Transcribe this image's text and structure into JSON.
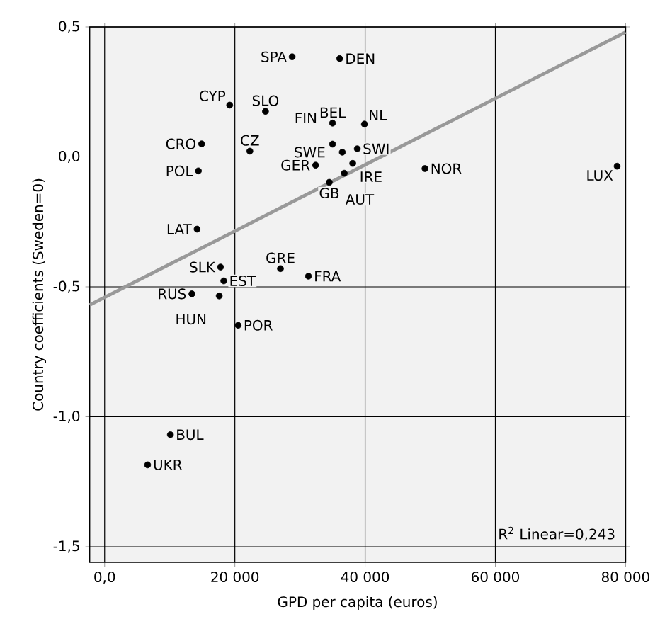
{
  "chart_data": {
    "type": "scatter",
    "xlabel": "GPD per capita (euros)",
    "ylabel": "Country coefficients (Sweden=0)",
    "xlim": [
      -2300,
      80000
    ],
    "ylim": [
      -1.56,
      0.5
    ],
    "xticks": [
      {
        "value": 0,
        "label": "0,0"
      },
      {
        "value": 20000,
        "label": "20 000"
      },
      {
        "value": 40000,
        "label": "40 000"
      },
      {
        "value": 60000,
        "label": "60 000"
      },
      {
        "value": 80000,
        "label": "80 000"
      }
    ],
    "yticks": [
      {
        "value": -1.5,
        "label": "-1,5"
      },
      {
        "value": -1.0,
        "label": "-1,0"
      },
      {
        "value": -0.5,
        "label": "-0,5"
      },
      {
        "value": 0,
        "label": "0,0"
      },
      {
        "value": 0.5,
        "label": "0,5"
      }
    ],
    "grid": true,
    "marker": "circle",
    "series": [
      {
        "color": "#000000",
        "x": [
          28800,
          36100,
          19200,
          24700,
          35000,
          39900,
          14900,
          35000,
          22300,
          36500,
          38800,
          32400,
          38100,
          14400,
          49200,
          78700,
          36800,
          34500,
          14200,
          17800,
          27000,
          31300,
          18300,
          13400,
          17600,
          20500,
          10100,
          6600
        ],
        "values": [
          0.385,
          0.378,
          0.199,
          0.175,
          0.13,
          0.126,
          0.05,
          0.049,
          0.022,
          0.018,
          0.031,
          -0.032,
          -0.025,
          -0.054,
          -0.045,
          -0.036,
          -0.063,
          -0.098,
          -0.278,
          -0.424,
          -0.43,
          -0.459,
          -0.477,
          -0.527,
          -0.535,
          -0.648,
          -1.069,
          -1.185
        ]
      },
      {
        "type": "line",
        "color": "#999999",
        "line_style": "solid",
        "marker": "none",
        "x": [
          -2300,
          80000
        ],
        "values": [
          -0.57,
          0.48
        ]
      }
    ],
    "annotations": [
      {
        "text": "SPA",
        "x": 28800,
        "y": 0.385
      },
      {
        "text": "DEN",
        "x": 36100,
        "y": 0.378
      },
      {
        "text": "CYP",
        "x": 19200,
        "y": 0.199
      },
      {
        "text": "SLO",
        "x": 24700,
        "y": 0.175
      },
      {
        "text": "BEL",
        "x": 35000,
        "y": 0.13
      },
      {
        "text": "NL",
        "x": 39900,
        "y": 0.126
      },
      {
        "text": "CRO",
        "x": 14900,
        "y": 0.05
      },
      {
        "text": "FIN",
        "x": 35000,
        "y": 0.049
      },
      {
        "text": "CZ",
        "x": 22300,
        "y": 0.022
      },
      {
        "text": "SWE",
        "x": 36500,
        "y": 0.018
      },
      {
        "text": "SWI",
        "x": 38800,
        "y": 0.031
      },
      {
        "text": "GER",
        "x": 32400,
        "y": -0.032
      },
      {
        "text": "IRE",
        "x": 38100,
        "y": -0.025
      },
      {
        "text": "POL",
        "x": 14400,
        "y": -0.054
      },
      {
        "text": "NOR",
        "x": 49200,
        "y": -0.045
      },
      {
        "text": "LUX",
        "x": 78700,
        "y": -0.036
      },
      {
        "text": "AUT",
        "x": 36800,
        "y": -0.063
      },
      {
        "text": "GB",
        "x": 34500,
        "y": -0.098
      },
      {
        "text": "LAT",
        "x": 14200,
        "y": -0.278
      },
      {
        "text": "SLK",
        "x": 17800,
        "y": -0.424
      },
      {
        "text": "GRE",
        "x": 27000,
        "y": -0.43
      },
      {
        "text": "FRA",
        "x": 31300,
        "y": -0.459
      },
      {
        "text": "EST",
        "x": 18300,
        "y": -0.477
      },
      {
        "text": "RUS",
        "x": 13400,
        "y": -0.527
      },
      {
        "text": "HUN",
        "x": 17600,
        "y": -0.535
      },
      {
        "text": "POR",
        "x": 20500,
        "y": -0.648
      },
      {
        "text": "BUL",
        "x": 10100,
        "y": -1.069
      },
      {
        "text": "UKR",
        "x": 6600,
        "y": -1.185
      },
      "R$^{2}$ Linear=0,243"
    ]
  }
}
